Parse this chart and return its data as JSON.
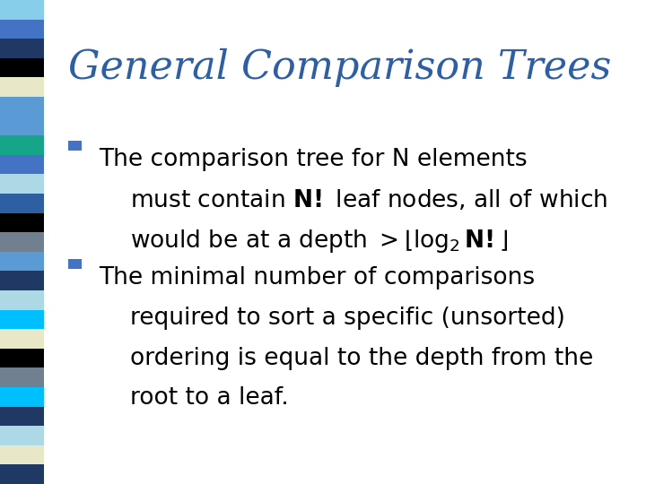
{
  "title": "General Comparison Trees",
  "title_color": "#2E5FA3",
  "title_fontsize": 32,
  "bg_color": "#FFFFFF",
  "bullet_color": "#4472C4",
  "text_color": "#000000",
  "bullet1_line1": "The comparison tree for N elements",
  "bullet1_line2_plain": "must contain ",
  "bullet1_line2_bold": "N!",
  "bullet1_line2_rest": " leaf nodes, all of which",
  "bullet2_line1": "The minimal number of comparisons",
  "bullet2_line2": "required to sort a specific (unsorted)",
  "bullet2_line3": "ordering is equal to the depth from the",
  "bullet2_line4": "root to a leaf.",
  "sidebar_colors": [
    "#87CEEB",
    "#4472C4",
    "#1F3864",
    "#000000",
    "#E8E8C8",
    "#5B9BD5",
    "#5B9BD5",
    "#17A589",
    "#4472C4",
    "#ADD8E6",
    "#2E5FA3",
    "#000000",
    "#708090",
    "#5B9BD5",
    "#1F3864",
    "#ADD8E6",
    "#00BFFF",
    "#E8E8C8",
    "#000000",
    "#708090",
    "#00BFFF",
    "#1F3864",
    "#ADD8E6",
    "#E8E8C8",
    "#1F3864"
  ],
  "body_fontsize": 19,
  "indent": 0.045
}
